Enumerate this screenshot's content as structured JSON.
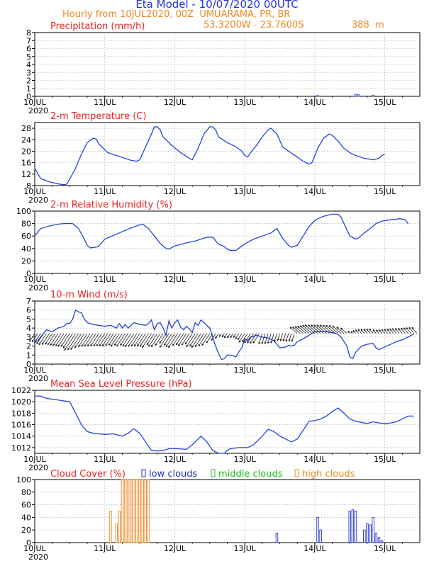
{
  "header": {
    "title": "Eta Model - 10/07/2020 00UTC",
    "subtitle": "Hourly from 10JUL2020, 00Z  UMUARAMA, PR, BR",
    "location": "53.3200W - 23.7600S",
    "elevation": "388  m"
  },
  "x_axis": {
    "day_labels": [
      "10JUL",
      "11JUL",
      "12JUL",
      "13JUL",
      "14JUL",
      "15JUL"
    ],
    "year_label": "2020",
    "hours_total": 132
  },
  "colors": {
    "title_red": "#ee2222",
    "line_blue": "#2244dd",
    "cloud_low": "#2233cc",
    "cloud_mid": "#22bb22",
    "cloud_high": "#ee8822",
    "grid": "#999999"
  },
  "chart_data": [
    {
      "id": "precip",
      "type": "bar",
      "title": "Precipitation (mm/h)",
      "ylim": [
        0,
        8
      ],
      "yticks": [
        0,
        1,
        2,
        3,
        4,
        5,
        6,
        7,
        8
      ],
      "bars": [
        [
          97,
          0.1
        ],
        [
          110,
          0.25
        ],
        [
          111,
          0.2
        ],
        [
          116,
          0.15
        ]
      ]
    },
    {
      "id": "temp",
      "type": "line",
      "title": "2-m Temperature (C)",
      "ylim": [
        8,
        30
      ],
      "yticks": [
        8,
        12,
        16,
        20,
        24,
        28
      ],
      "points": [
        [
          0,
          14
        ],
        [
          2,
          10.5
        ],
        [
          5,
          9.3
        ],
        [
          8,
          8.6
        ],
        [
          10,
          8.3
        ],
        [
          11,
          8.5
        ],
        [
          14,
          14
        ],
        [
          16,
          19
        ],
        [
          18,
          23
        ],
        [
          20,
          24.5
        ],
        [
          21,
          24.3
        ],
        [
          22,
          22.5
        ],
        [
          25,
          19.5
        ],
        [
          28,
          18.5
        ],
        [
          31,
          17.5
        ],
        [
          33,
          16.8
        ],
        [
          35,
          16.5
        ],
        [
          36,
          17
        ],
        [
          38,
          21.5
        ],
        [
          40,
          26
        ],
        [
          41,
          28.5
        ],
        [
          42,
          28.5
        ],
        [
          43,
          27.5
        ],
        [
          44,
          25
        ],
        [
          47,
          22
        ],
        [
          50,
          19.5
        ],
        [
          53,
          17.5
        ],
        [
          54,
          17
        ],
        [
          56,
          21
        ],
        [
          58,
          26
        ],
        [
          60,
          28.5
        ],
        [
          61,
          28.5
        ],
        [
          62,
          27.5
        ],
        [
          63,
          25
        ],
        [
          66,
          23
        ],
        [
          69,
          21.5
        ],
        [
          71,
          20
        ],
        [
          72,
          18.5
        ],
        [
          73,
          18
        ],
        [
          74,
          19.5
        ],
        [
          76,
          22
        ],
        [
          78,
          25
        ],
        [
          80,
          27.5
        ],
        [
          81,
          28
        ],
        [
          83,
          26
        ],
        [
          85,
          21.5
        ],
        [
          87,
          20
        ],
        [
          90,
          18
        ],
        [
          92,
          16.5
        ],
        [
          94,
          15.5
        ],
        [
          95,
          16
        ],
        [
          97,
          21
        ],
        [
          99,
          24.5
        ],
        [
          101,
          26
        ],
        [
          102,
          25.5
        ],
        [
          104,
          23.5
        ],
        [
          106,
          21
        ],
        [
          108,
          19.5
        ],
        [
          110,
          18.5
        ],
        [
          113,
          17.5
        ],
        [
          116,
          17
        ],
        [
          118,
          17.5
        ],
        [
          119,
          18.5
        ],
        [
          120,
          19
        ]
      ]
    },
    {
      "id": "rh",
      "type": "line",
      "title": "2-m Relative Humidity (%)",
      "ylim": [
        0,
        100
      ],
      "yticks": [
        0,
        20,
        40,
        60,
        80,
        100
      ],
      "points": [
        [
          0,
          60
        ],
        [
          2,
          72
        ],
        [
          5,
          76
        ],
        [
          8,
          79
        ],
        [
          10,
          80
        ],
        [
          13,
          80
        ],
        [
          15,
          72
        ],
        [
          17,
          55
        ],
        [
          18,
          45
        ],
        [
          19,
          41
        ],
        [
          21,
          42
        ],
        [
          22,
          44
        ],
        [
          24,
          55
        ],
        [
          27,
          61
        ],
        [
          30,
          67
        ],
        [
          33,
          73
        ],
        [
          36,
          78
        ],
        [
          37,
          79
        ],
        [
          39,
          72
        ],
        [
          41,
          60
        ],
        [
          43,
          48
        ],
        [
          45,
          40
        ],
        [
          46,
          39
        ],
        [
          48,
          44
        ],
        [
          52,
          49
        ],
        [
          55,
          52
        ],
        [
          57,
          55
        ],
        [
          59,
          58
        ],
        [
          61,
          58
        ],
        [
          63,
          47
        ],
        [
          65,
          43
        ],
        [
          66,
          39
        ],
        [
          67,
          37
        ],
        [
          69,
          37
        ],
        [
          71,
          44
        ],
        [
          73,
          50
        ],
        [
          75,
          55
        ],
        [
          78,
          60
        ],
        [
          81,
          65
        ],
        [
          83,
          72
        ],
        [
          85,
          56
        ],
        [
          87,
          45
        ],
        [
          88,
          42
        ],
        [
          90,
          45
        ],
        [
          92,
          60
        ],
        [
          94,
          75
        ],
        [
          96,
          85
        ],
        [
          98,
          90
        ],
        [
          100,
          93
        ],
        [
          102,
          95
        ],
        [
          104,
          95
        ],
        [
          105,
          90
        ],
        [
          107,
          70
        ],
        [
          108,
          60
        ],
        [
          110,
          55
        ],
        [
          111,
          57
        ],
        [
          113,
          65
        ],
        [
          115,
          72
        ],
        [
          117,
          80
        ],
        [
          119,
          84
        ],
        [
          122,
          86
        ],
        [
          124,
          87
        ],
        [
          125,
          88
        ],
        [
          126,
          87
        ],
        [
          127,
          86
        ],
        [
          128,
          80
        ]
      ]
    },
    {
      "id": "wind",
      "type": "line",
      "title": "10-m Wind (m/s)",
      "ylim": [
        0,
        7
      ],
      "yticks": [
        0,
        1,
        2,
        3,
        4,
        5,
        6,
        7
      ],
      "speed": [
        [
          0,
          2.5
        ],
        [
          1,
          2.6
        ],
        [
          2,
          3.0
        ],
        [
          3,
          3.4
        ],
        [
          4,
          3.8
        ],
        [
          6,
          3.6
        ],
        [
          8,
          4.0
        ],
        [
          10,
          4.2
        ],
        [
          11,
          4.5
        ],
        [
          12,
          4.5
        ],
        [
          13,
          5.0
        ],
        [
          14,
          6.0
        ],
        [
          15,
          5.8
        ],
        [
          16,
          5.7
        ],
        [
          17,
          5.0
        ],
        [
          18,
          4.6
        ],
        [
          20,
          4.4
        ],
        [
          22,
          4.3
        ],
        [
          24,
          4.2
        ],
        [
          26,
          4.3
        ],
        [
          28,
          4.0
        ],
        [
          29,
          4.5
        ],
        [
          30,
          4.0
        ],
        [
          31,
          4.4
        ],
        [
          32,
          4.0
        ],
        [
          34,
          4.6
        ],
        [
          36,
          4.4
        ],
        [
          38,
          4.3
        ],
        [
          39,
          4.5
        ],
        [
          40,
          4.9
        ],
        [
          41,
          3.8
        ],
        [
          42,
          4.5
        ],
        [
          43,
          4.6
        ],
        [
          44,
          4.0
        ],
        [
          45,
          3.2
        ],
        [
          46,
          4.8
        ],
        [
          47,
          4.0
        ],
        [
          48,
          4.6
        ],
        [
          49,
          4.9
        ],
        [
          50,
          4.1
        ],
        [
          51,
          3.8
        ],
        [
          52,
          4.2
        ],
        [
          53,
          3.9
        ],
        [
          54,
          3.5
        ],
        [
          55,
          4.6
        ],
        [
          56,
          4.3
        ],
        [
          57,
          4.9
        ],
        [
          58,
          4.6
        ],
        [
          59,
          4.3
        ],
        [
          60,
          4.0
        ],
        [
          61,
          3.0
        ],
        [
          62,
          2.0
        ],
        [
          63,
          1.2
        ],
        [
          64,
          0.5
        ],
        [
          65,
          0.6
        ],
        [
          66,
          1.0
        ],
        [
          67,
          1.0
        ],
        [
          68,
          0.9
        ],
        [
          69,
          0.8
        ],
        [
          70,
          1.4
        ],
        [
          71,
          1.8
        ],
        [
          72,
          2.8
        ],
        [
          73,
          2.6
        ],
        [
          74,
          3.0
        ],
        [
          76,
          3.2
        ],
        [
          78,
          3.0
        ],
        [
          80,
          2.9
        ],
        [
          82,
          2.6
        ],
        [
          84,
          1.8
        ],
        [
          86,
          1.9
        ],
        [
          87,
          2.1
        ],
        [
          88,
          2.0
        ],
        [
          89,
          2.1
        ],
        [
          90,
          2.5
        ],
        [
          92,
          2.8
        ],
        [
          94,
          3.2
        ],
        [
          96,
          3.6
        ],
        [
          98,
          3.6
        ],
        [
          100,
          3.6
        ],
        [
          102,
          3.5
        ],
        [
          104,
          3.3
        ],
        [
          105,
          3.0
        ],
        [
          106,
          2.5
        ],
        [
          107,
          2.0
        ],
        [
          108,
          0.8
        ],
        [
          109,
          0.6
        ],
        [
          110,
          1.3
        ],
        [
          112,
          2.0
        ],
        [
          114,
          2.2
        ],
        [
          116,
          2.3
        ],
        [
          117,
          1.8
        ],
        [
          118,
          1.6
        ],
        [
          120,
          1.9
        ],
        [
          122,
          2.2
        ],
        [
          124,
          2.5
        ],
        [
          126,
          2.7
        ],
        [
          128,
          3.0
        ],
        [
          129,
          3.2
        ],
        [
          130,
          3.3
        ]
      ]
    },
    {
      "id": "mslp",
      "type": "line",
      "title": "Mean Sea Level Pressure (hPa)",
      "ylim": [
        1011,
        1022
      ],
      "yticks": [
        1012,
        1014,
        1016,
        1018,
        1020,
        1022
      ],
      "points": [
        [
          0,
          1021
        ],
        [
          2,
          1021
        ],
        [
          4,
          1020.6
        ],
        [
          8,
          1020.3
        ],
        [
          12,
          1020
        ],
        [
          14,
          1018
        ],
        [
          16,
          1016
        ],
        [
          18,
          1014.8
        ],
        [
          20,
          1014.5
        ],
        [
          24,
          1014.3
        ],
        [
          27,
          1014.4
        ],
        [
          30,
          1014
        ],
        [
          32,
          1014.5
        ],
        [
          34,
          1015.3
        ],
        [
          36,
          1014.5
        ],
        [
          38,
          1013
        ],
        [
          40,
          1011.5
        ],
        [
          42,
          1011.4
        ],
        [
          44,
          1011.5
        ],
        [
          46,
          1011.8
        ],
        [
          49,
          1011.8
        ],
        [
          52,
          1011.7
        ],
        [
          54,
          1012.5
        ],
        [
          57,
          1014
        ],
        [
          59,
          1013
        ],
        [
          61,
          1011.5
        ],
        [
          63,
          1011
        ],
        [
          65,
          1011
        ],
        [
          66,
          1011.5
        ],
        [
          67,
          1011.8
        ],
        [
          70,
          1012
        ],
        [
          73,
          1012
        ],
        [
          75,
          1012.5
        ],
        [
          78,
          1014
        ],
        [
          80,
          1015.2
        ],
        [
          82,
          1014.8
        ],
        [
          84,
          1014
        ],
        [
          86,
          1013.5
        ],
        [
          88,
          1013
        ],
        [
          90,
          1013.5
        ],
        [
          92,
          1015
        ],
        [
          94,
          1016.6
        ],
        [
          96,
          1016.7
        ],
        [
          98,
          1017
        ],
        [
          100,
          1017.5
        ],
        [
          102,
          1018.3
        ],
        [
          104,
          1018.9
        ],
        [
          106,
          1018
        ],
        [
          108,
          1017
        ],
        [
          110,
          1016.6
        ],
        [
          112,
          1016.4
        ],
        [
          114,
          1016.2
        ],
        [
          116,
          1016.5
        ],
        [
          118,
          1016.3
        ],
        [
          120,
          1016.2
        ],
        [
          122,
          1016.3
        ],
        [
          124,
          1016.5
        ],
        [
          126,
          1017
        ],
        [
          128,
          1017.5
        ],
        [
          130,
          1017.5
        ]
      ]
    },
    {
      "id": "cloud",
      "type": "bar",
      "title": "Cloud Cover (%)",
      "legend": [
        "low clouds",
        "middle clouds",
        "high clouds"
      ],
      "ylim": [
        0,
        100
      ],
      "yticks": [
        0,
        20,
        40,
        60,
        80,
        100
      ],
      "high": [
        [
          26,
          50
        ],
        [
          28,
          30
        ],
        [
          29,
          50
        ],
        [
          30,
          100
        ],
        [
          31,
          100
        ],
        [
          32,
          100
        ],
        [
          33,
          100
        ],
        [
          34,
          100
        ],
        [
          35,
          100
        ],
        [
          36,
          100
        ],
        [
          37,
          100
        ],
        [
          38,
          100
        ],
        [
          39,
          100
        ]
      ],
      "low": [
        [
          83,
          15
        ],
        [
          97,
          40
        ],
        [
          98,
          20
        ],
        [
          108,
          50
        ],
        [
          109,
          52
        ],
        [
          110,
          50
        ],
        [
          113,
          20
        ],
        [
          114,
          30
        ],
        [
          115,
          28
        ],
        [
          116,
          40
        ],
        [
          117,
          15
        ],
        [
          118,
          8
        ],
        [
          119,
          3
        ]
      ]
    }
  ]
}
